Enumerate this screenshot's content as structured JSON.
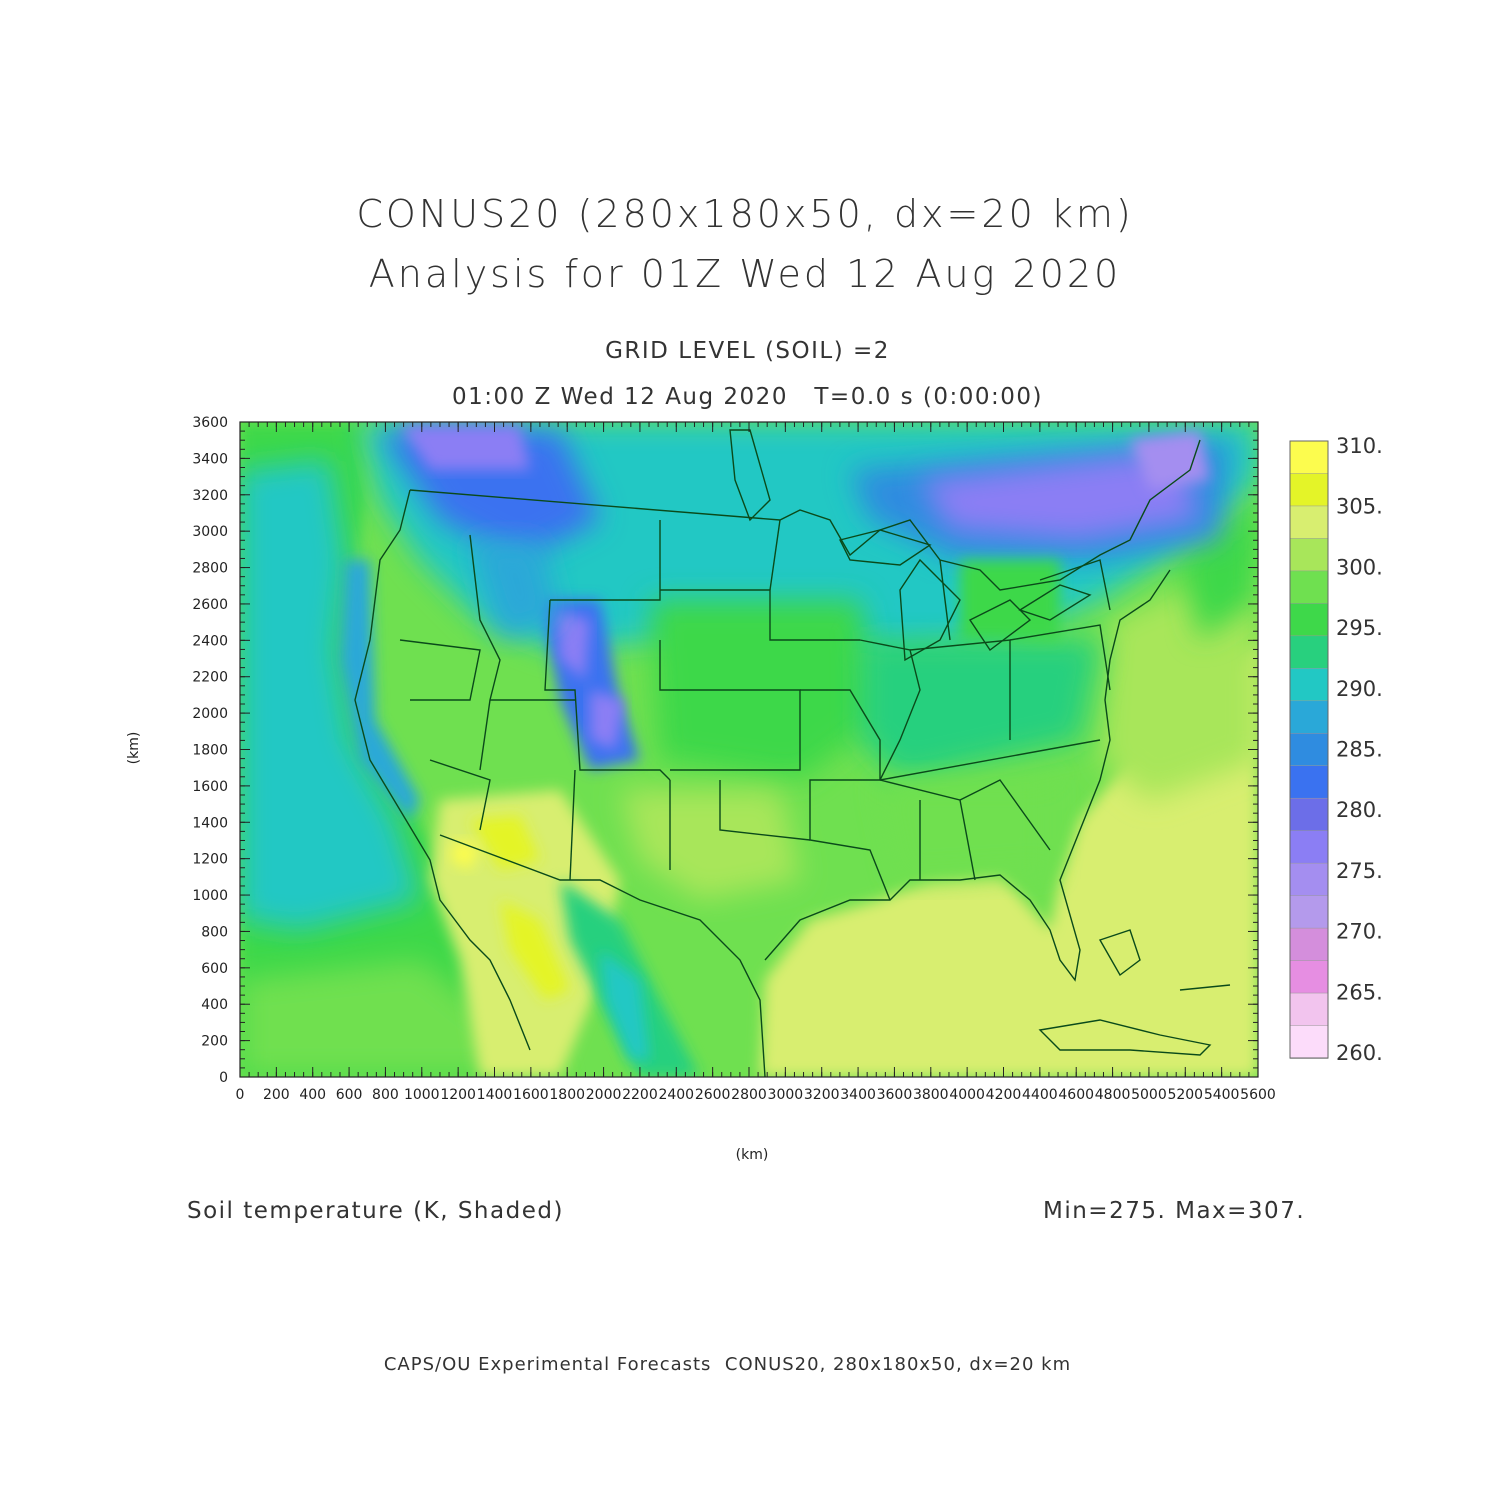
{
  "titles": {
    "line1": "CONUS20 (280x180x50, dx=20 km)",
    "line2": "Analysis for 01Z Wed 12 Aug 2020",
    "level": "GRID LEVEL (SOIL) =2",
    "time": "01:00 Z Wed 12 Aug 2020   T=0.0 s (0:00:00)"
  },
  "axes": {
    "xlabel": "(km)",
    "ylabel": "(km)",
    "x_ticks": [
      "0",
      "200",
      "400",
      "600",
      "800",
      "1000",
      "1200",
      "1400",
      "1600",
      "1800",
      "2000",
      "2200",
      "2400",
      "2600",
      "2800",
      "3000",
      "3200",
      "3400",
      "3600",
      "3800",
      "4000",
      "4200",
      "4400",
      "4600",
      "4800",
      "5000",
      "5200",
      "5400",
      "5600"
    ],
    "y_ticks": [
      "0",
      "200",
      "400",
      "600",
      "800",
      "1000",
      "1200",
      "1400",
      "1600",
      "1800",
      "2000",
      "2200",
      "2400",
      "2600",
      "2800",
      "3000",
      "3200",
      "3400",
      "3600"
    ]
  },
  "colorbar": {
    "labels": [
      "310.",
      "305.",
      "300.",
      "295.",
      "290.",
      "285.",
      "280.",
      "275.",
      "270.",
      "265.",
      "260."
    ],
    "colors": [
      "#fcfc4e",
      "#e4f428",
      "#d8ee70",
      "#a8e65a",
      "#6fe050",
      "#3ed84a",
      "#28d07e",
      "#22c8c4",
      "#2aa8d8",
      "#2f8ce0",
      "#3a72f0",
      "#6c6ee8",
      "#8b7ef4",
      "#a48ef0",
      "#b49aec",
      "#d48edc",
      "#e68ee2",
      "#f2c4ee",
      "#fcdcfa"
    ]
  },
  "footer": {
    "field": "Soil temperature (K, Shaded)",
    "minmax": "Min=275. Max=307.",
    "credit": "CAPS/OU Experimental Forecasts  CONUS20, 280x180x50, dx=20 km"
  },
  "map_colors": {
    "ocean_pacific": "#3ed84a",
    "gulf_atlantic": "#d8ee70",
    "land_base": "#6fe050",
    "north_cool": "#22c8c4",
    "cold": "#8b7ef4",
    "border": "#0a4a1a"
  }
}
